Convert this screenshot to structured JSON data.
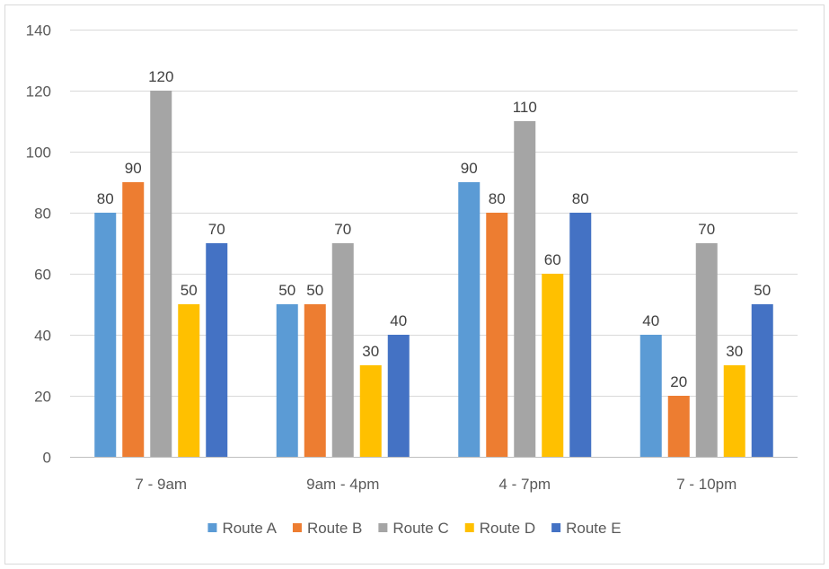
{
  "chart_data": {
    "type": "bar",
    "categories": [
      "7 - 9am",
      "9am - 4pm",
      "4 - 7pm",
      "7 - 10pm"
    ],
    "series": [
      {
        "name": "Route A",
        "values": [
          80,
          50,
          90,
          40
        ],
        "color": "#5b9bd5"
      },
      {
        "name": "Route B",
        "values": [
          90,
          50,
          80,
          20
        ],
        "color": "#ed7d31"
      },
      {
        "name": "Route C",
        "values": [
          120,
          70,
          110,
          70
        ],
        "color": "#a5a5a5"
      },
      {
        "name": "Route D",
        "values": [
          50,
          30,
          60,
          30
        ],
        "color": "#ffc000"
      },
      {
        "name": "Route E",
        "values": [
          70,
          40,
          80,
          50
        ],
        "color": "#4472c4"
      }
    ],
    "title": "",
    "xlabel": "",
    "ylabel": "",
    "ylim": [
      0,
      140
    ],
    "yticks": [
      0,
      20,
      40,
      60,
      80,
      100,
      120,
      140
    ],
    "grid": true,
    "legend": "bottom",
    "data_labels": true
  }
}
